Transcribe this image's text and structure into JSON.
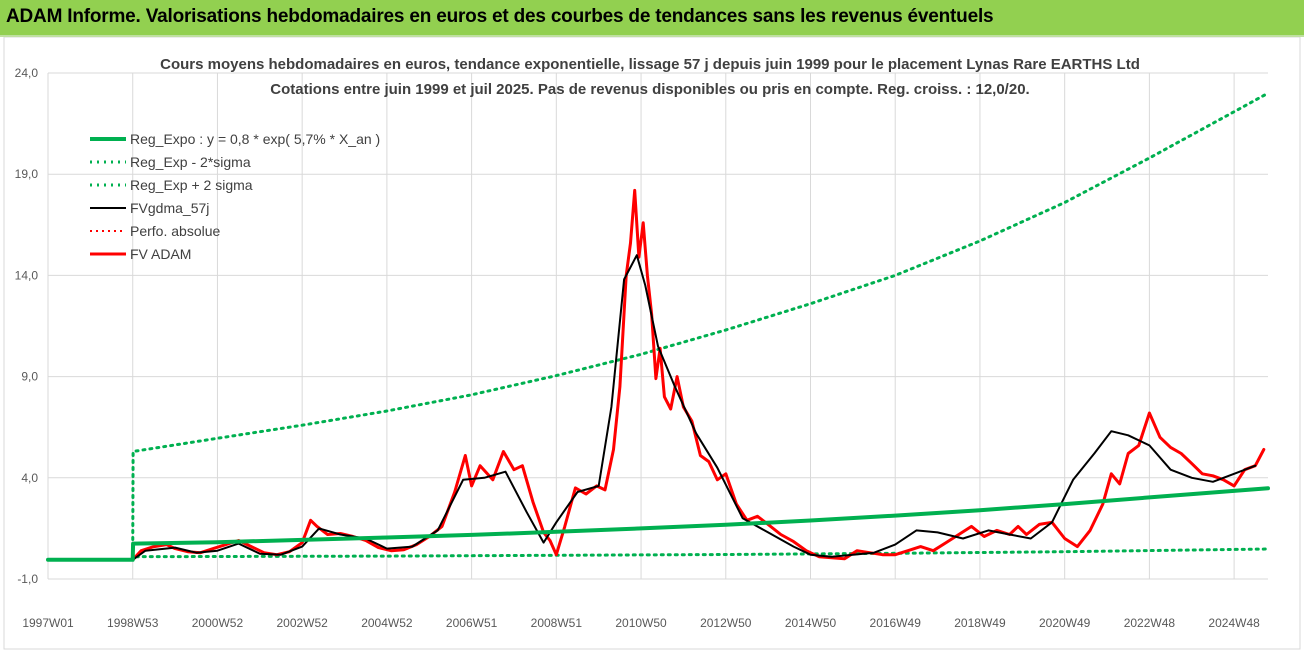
{
  "banner": {
    "title": "ADAM Informe. Valorisations hebdomadaires en euros et des courbes de tendances sans les revenus éventuels"
  },
  "chart_data": {
    "type": "line",
    "title": "Cours moyens hebdomadaires en euros, tendance exponentielle, lissage 57 j depuis juin 1999 pour le placement Lynas Rare EARTHS Ltd",
    "subtitle": "Cotations entre juin 1999 et juil 2025.  Pas de revenus disponibles ou pris en compte. Reg. croiss. : 12,0/20.",
    "ylim": [
      -1,
      24
    ],
    "yticks": [
      "-1,0",
      "4,0",
      "9,0",
      "14,0",
      "19,0",
      "24,0"
    ],
    "ytick_values": [
      -1,
      4,
      9,
      14,
      19,
      24
    ],
    "xlim": [
      1997.0,
      2025.8
    ],
    "xticks": [
      "1997W01",
      "1998W53",
      "2000W52",
      "2002W52",
      "2004W52",
      "2006W51",
      "2008W51",
      "2010W50",
      "2012W50",
      "2014W50",
      "2016W49",
      "2018W49",
      "2020W49",
      "2022W48",
      "2024W48"
    ],
    "xtick_values": [
      1997.0,
      1999.0,
      2001.0,
      2003.0,
      2005.0,
      2007.0,
      2009.0,
      2011.0,
      2013.0,
      2015.0,
      2017.0,
      2019.0,
      2021.0,
      2023.0,
      2025.0
    ],
    "grid": true,
    "legend_position": "top-left",
    "colors": {
      "reg": "#00b050",
      "fv": "#ff0000",
      "smooth": "#000000",
      "perfo": "#ff0000"
    },
    "series": [
      {
        "name": "Reg_Expo : y = 0,8 * exp( 5,7% *  X_an )",
        "style": "solid",
        "color": "#00b050",
        "x": [
          1997.0,
          1999.0,
          1999.01,
          2001,
          2003,
          2005,
          2007,
          2009,
          2011,
          2013,
          2015,
          2017,
          2019,
          2021,
          2023,
          2025.8
        ],
        "values": [
          -0.05,
          -0.05,
          0.75,
          0.82,
          0.93,
          1.05,
          1.18,
          1.33,
          1.5,
          1.68,
          1.89,
          2.13,
          2.4,
          2.7,
          3.03,
          3.48
        ]
      },
      {
        "name": "Reg_Exp - 2*sigma",
        "style": "dotted",
        "color": "#00b050",
        "x": [
          1997.0,
          1999.0,
          1999.01,
          2001,
          2005,
          2009,
          2013,
          2017,
          2021,
          2025.8
        ],
        "values": [
          -0.05,
          -0.05,
          0.1,
          0.11,
          0.13,
          0.17,
          0.21,
          0.27,
          0.35,
          0.48
        ]
      },
      {
        "name": "Reg_Exp + 2 sigma",
        "style": "dotted",
        "color": "#00b050",
        "x": [
          1997.0,
          1999.0,
          1999.01,
          2001,
          2003,
          2005,
          2007,
          2009,
          2011,
          2013,
          2015,
          2017,
          2019,
          2021,
          2023,
          2025.8
        ],
        "values": [
          -0.05,
          -0.05,
          5.3,
          5.95,
          6.6,
          7.3,
          8.1,
          9.05,
          10.1,
          11.3,
          12.6,
          14.0,
          15.7,
          17.6,
          19.8,
          23.0
        ]
      },
      {
        "name": "FVgdma_57j",
        "style": "solid",
        "color": "#000000",
        "x": [
          1997.0,
          1999.0,
          1999.3,
          2000,
          2000.5,
          2001,
          2001.5,
          2002,
          2002.5,
          2003,
          2003.4,
          2003.9,
          2004.5,
          2005,
          2005.6,
          2006.2,
          2006.8,
          2007.3,
          2007.8,
          2008.3,
          2008.7,
          2009.0,
          2009.5,
          2010.0,
          2010.3,
          2010.6,
          2010.9,
          2011.1,
          2011.4,
          2011.8,
          2012.3,
          2012.8,
          2013.4,
          2014.0,
          2014.6,
          2015.0,
          2015.5,
          2016.0,
          2016.5,
          2017.0,
          2017.5,
          2018.0,
          2018.6,
          2019.2,
          2019.7,
          2020.2,
          2020.7,
          2021.2,
          2021.7,
          2022.1,
          2022.5,
          2023.0,
          2023.5,
          2024.0,
          2024.5,
          2025.0,
          2025.5
        ],
        "values": [
          -0.05,
          -0.05,
          0.4,
          0.55,
          0.3,
          0.4,
          0.75,
          0.25,
          0.2,
          0.6,
          1.5,
          1.2,
          1.0,
          0.5,
          0.6,
          1.4,
          3.9,
          4.0,
          4.3,
          2.3,
          0.8,
          1.8,
          3.3,
          3.6,
          7.5,
          13.8,
          15.0,
          13.5,
          10.5,
          8.5,
          6.2,
          4.5,
          2.0,
          1.3,
          0.6,
          0.2,
          0.1,
          0.2,
          0.3,
          0.7,
          1.4,
          1.3,
          1.0,
          1.4,
          1.2,
          1.0,
          1.8,
          3.9,
          5.2,
          6.3,
          6.1,
          5.6,
          4.4,
          4.0,
          3.8,
          4.2,
          4.6
        ]
      },
      {
        "name": "Perfo. absolue",
        "style": "dotted",
        "color": "#ff0000",
        "x": [
          1997.0,
          1999.0
        ],
        "values": [
          -0.05,
          -0.05
        ]
      },
      {
        "name": "FV ADAM",
        "style": "solid",
        "color": "#ff0000",
        "x": [
          1997.0,
          1999.0,
          1999.2,
          1999.5,
          1999.8,
          2000.0,
          2000.3,
          2000.6,
          2000.9,
          2001.2,
          2001.5,
          2001.8,
          2002.1,
          2002.4,
          2002.7,
          2003.0,
          2003.2,
          2003.35,
          2003.6,
          2003.9,
          2004.2,
          2004.5,
          2004.8,
          2005.1,
          2005.4,
          2005.7,
          2006.0,
          2006.3,
          2006.6,
          2006.85,
          2007.0,
          2007.2,
          2007.5,
          2007.75,
          2008.0,
          2008.2,
          2008.45,
          2008.7,
          2008.85,
          2009.0,
          2009.2,
          2009.45,
          2009.7,
          2009.95,
          2010.15,
          2010.35,
          2010.5,
          2010.65,
          2010.75,
          2010.85,
          2010.95,
          2011.05,
          2011.15,
          2011.25,
          2011.35,
          2011.45,
          2011.55,
          2011.7,
          2011.85,
          2012.0,
          2012.2,
          2012.4,
          2012.6,
          2012.8,
          2013.0,
          2013.25,
          2013.5,
          2013.75,
          2014.0,
          2014.3,
          2014.6,
          2014.9,
          2015.2,
          2015.5,
          2015.8,
          2016.1,
          2016.4,
          2016.7,
          2017.0,
          2017.3,
          2017.6,
          2017.9,
          2018.2,
          2018.5,
          2018.8,
          2019.1,
          2019.4,
          2019.7,
          2019.9,
          2020.1,
          2020.4,
          2020.7,
          2021.0,
          2021.3,
          2021.6,
          2021.9,
          2022.1,
          2022.3,
          2022.5,
          2022.75,
          2023.0,
          2023.25,
          2023.5,
          2023.75,
          2024.0,
          2024.25,
          2024.5,
          2024.75,
          2025.0,
          2025.25,
          2025.5,
          2025.7
        ],
        "values": [
          -0.05,
          -0.05,
          0.4,
          0.6,
          0.7,
          0.5,
          0.35,
          0.3,
          0.5,
          0.7,
          0.9,
          0.6,
          0.3,
          0.2,
          0.35,
          0.8,
          1.9,
          1.6,
          1.2,
          1.25,
          1.1,
          0.9,
          0.55,
          0.4,
          0.45,
          0.7,
          1.1,
          1.6,
          3.3,
          5.1,
          3.6,
          4.6,
          3.9,
          5.3,
          4.4,
          4.6,
          2.8,
          1.3,
          0.9,
          0.2,
          1.6,
          3.5,
          3.2,
          3.6,
          3.4,
          5.4,
          8.5,
          14.0,
          15.6,
          18.2,
          14.9,
          16.6,
          14.0,
          12.1,
          8.9,
          10.4,
          8.0,
          7.4,
          9.0,
          7.5,
          6.8,
          5.1,
          4.8,
          3.9,
          4.2,
          2.7,
          1.9,
          2.1,
          1.7,
          1.2,
          0.85,
          0.4,
          0.1,
          0.05,
          0.0,
          0.4,
          0.3,
          0.2,
          0.2,
          0.4,
          0.6,
          0.4,
          0.8,
          1.2,
          1.6,
          1.1,
          1.4,
          1.2,
          1.6,
          1.2,
          1.7,
          1.8,
          1.0,
          0.6,
          1.4,
          2.7,
          4.2,
          3.7,
          5.2,
          5.6,
          7.2,
          6.0,
          5.5,
          5.2,
          4.7,
          4.2,
          4.1,
          3.9,
          3.6,
          4.4,
          4.6,
          5.4
        ]
      }
    ]
  }
}
